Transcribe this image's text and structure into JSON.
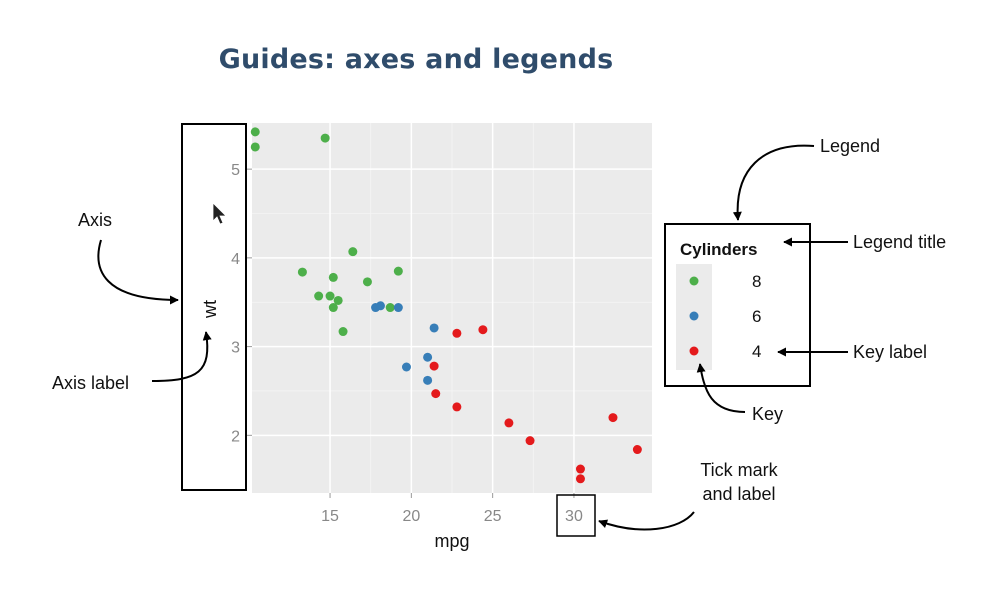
{
  "page": {
    "title": "Guides: axes and legends"
  },
  "annotations": {
    "axis": "Axis",
    "axis_label": "Axis label",
    "legend": "Legend",
    "legend_title": "Legend title",
    "key_label": "Key label",
    "key": "Key",
    "tick_mark_line1": "Tick mark",
    "tick_mark_line2": "and label"
  },
  "chart_data": {
    "type": "scatter",
    "xlabel": "mpg",
    "ylabel": "wt",
    "xlim": [
      10.2,
      34.8
    ],
    "ylim": [
      1.35,
      5.52
    ],
    "x_ticks": [
      15,
      20,
      25,
      30
    ],
    "y_ticks": [
      2,
      3,
      4,
      5
    ],
    "grid": true,
    "legend": {
      "title": "Cylinders",
      "placement": "right",
      "entries": [
        "8",
        "6",
        "4"
      ]
    },
    "colors": {
      "8": "#4daf4a",
      "6": "#377eb8",
      "4": "#e41a1c"
    },
    "series": [
      {
        "name": "8",
        "points": [
          [
            10.4,
            5.42
          ],
          [
            10.4,
            5.25
          ],
          [
            14.7,
            5.35
          ],
          [
            13.3,
            3.84
          ],
          [
            15.2,
            3.78
          ],
          [
            15.0,
            3.57
          ],
          [
            14.3,
            3.57
          ],
          [
            15.5,
            3.52
          ],
          [
            15.2,
            3.44
          ],
          [
            15.8,
            3.17
          ],
          [
            16.4,
            4.07
          ],
          [
            17.3,
            3.73
          ],
          [
            18.7,
            3.44
          ],
          [
            19.2,
            3.85
          ]
        ]
      },
      {
        "name": "6",
        "points": [
          [
            17.8,
            3.44
          ],
          [
            18.1,
            3.46
          ],
          [
            19.2,
            3.44
          ],
          [
            21.4,
            3.21
          ],
          [
            21.0,
            2.88
          ],
          [
            21.0,
            2.62
          ],
          [
            19.7,
            2.77
          ]
        ]
      },
      {
        "name": "4",
        "points": [
          [
            22.8,
            3.15
          ],
          [
            24.4,
            3.19
          ],
          [
            21.4,
            2.78
          ],
          [
            21.5,
            2.47
          ],
          [
            22.8,
            2.32
          ],
          [
            26.0,
            2.14
          ],
          [
            27.3,
            1.94
          ],
          [
            32.4,
            2.2
          ],
          [
            33.9,
            1.84
          ],
          [
            30.4,
            1.62
          ],
          [
            30.4,
            1.51
          ]
        ]
      }
    ]
  }
}
